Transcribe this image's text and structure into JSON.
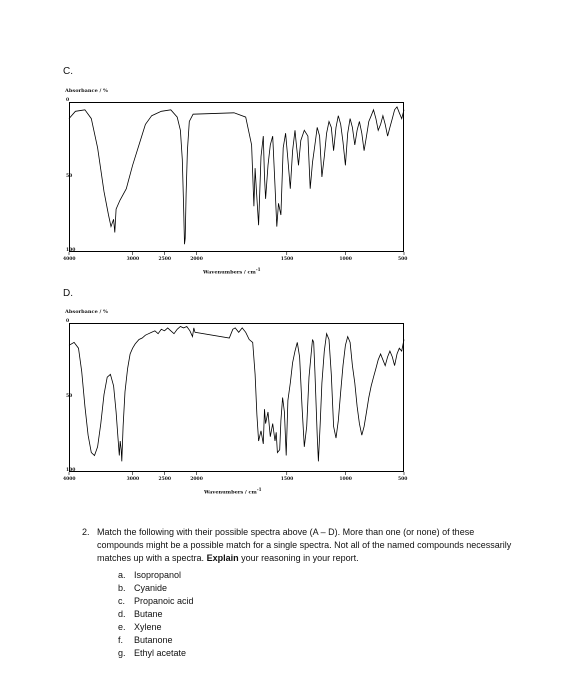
{
  "spectra": [
    {
      "label": "C.",
      "ylabel": "Absorbance / %",
      "ytick_top": "0",
      "ytick_mid": "50",
      "ytick_bottom": "100",
      "xlabel": "Wavenumbers / cm",
      "xlabel_sup": "-1",
      "xticks": [
        {
          "wn": 4000,
          "label": "4000"
        },
        {
          "wn": 3000,
          "label": "3000"
        },
        {
          "wn": 2500,
          "label": "2500"
        },
        {
          "wn": 2000,
          "label": "2000"
        },
        {
          "wn": 1500,
          "label": "1500"
        },
        {
          "wn": 1000,
          "label": "1000"
        },
        {
          "wn": 500,
          "label": "500"
        }
      ],
      "trace": [
        [
          4000,
          10
        ],
        [
          3900,
          5
        ],
        [
          3750,
          4
        ],
        [
          3650,
          10
        ],
        [
          3550,
          30
        ],
        [
          3450,
          60
        ],
        [
          3380,
          76
        ],
        [
          3340,
          84
        ],
        [
          3300,
          79
        ],
        [
          3280,
          88
        ],
        [
          3260,
          72
        ],
        [
          3200,
          66
        ],
        [
          3100,
          58
        ],
        [
          3000,
          42
        ],
        [
          2900,
          28
        ],
        [
          2800,
          14
        ],
        [
          2700,
          8
        ],
        [
          2550,
          5
        ],
        [
          2400,
          4
        ],
        [
          2300,
          9
        ],
        [
          2250,
          18
        ],
        [
          2220,
          38
        ],
        [
          2200,
          70
        ],
        [
          2185,
          96
        ],
        [
          2175,
          92
        ],
        [
          2160,
          62
        ],
        [
          2140,
          32
        ],
        [
          2110,
          12
        ],
        [
          2050,
          7
        ],
        [
          1950,
          6
        ],
        [
          1850,
          9
        ],
        [
          1800,
          28
        ],
        [
          1780,
          70
        ],
        [
          1770,
          44
        ],
        [
          1760,
          58
        ],
        [
          1740,
          83
        ],
        [
          1720,
          36
        ],
        [
          1700,
          22
        ],
        [
          1690,
          50
        ],
        [
          1680,
          65
        ],
        [
          1660,
          42
        ],
        [
          1640,
          28
        ],
        [
          1620,
          22
        ],
        [
          1600,
          56
        ],
        [
          1585,
          84
        ],
        [
          1570,
          68
        ],
        [
          1550,
          76
        ],
        [
          1530,
          30
        ],
        [
          1510,
          20
        ],
        [
          1490,
          38
        ],
        [
          1470,
          58
        ],
        [
          1450,
          32
        ],
        [
          1430,
          18
        ],
        [
          1420,
          26
        ],
        [
          1400,
          42
        ],
        [
          1380,
          25
        ],
        [
          1350,
          18
        ],
        [
          1320,
          22
        ],
        [
          1300,
          58
        ],
        [
          1280,
          40
        ],
        [
          1260,
          28
        ],
        [
          1240,
          16
        ],
        [
          1220,
          22
        ],
        [
          1200,
          50
        ],
        [
          1180,
          36
        ],
        [
          1160,
          20
        ],
        [
          1140,
          12
        ],
        [
          1120,
          16
        ],
        [
          1100,
          32
        ],
        [
          1080,
          16
        ],
        [
          1060,
          8
        ],
        [
          1040,
          14
        ],
        [
          1020,
          26
        ],
        [
          1000,
          42
        ],
        [
          980,
          20
        ],
        [
          960,
          10
        ],
        [
          940,
          16
        ],
        [
          920,
          28
        ],
        [
          900,
          18
        ],
        [
          880,
          12
        ],
        [
          860,
          20
        ],
        [
          840,
          32
        ],
        [
          820,
          22
        ],
        [
          800,
          12
        ],
        [
          780,
          8
        ],
        [
          760,
          4
        ],
        [
          740,
          10
        ],
        [
          720,
          18
        ],
        [
          700,
          14
        ],
        [
          680,
          8
        ],
        [
          660,
          14
        ],
        [
          640,
          22
        ],
        [
          620,
          16
        ],
        [
          600,
          10
        ],
        [
          580,
          4
        ],
        [
          560,
          2
        ],
        [
          540,
          6
        ],
        [
          520,
          10
        ],
        [
          500,
          4
        ]
      ]
    },
    {
      "label": "D.",
      "ylabel": "Absorbance / %",
      "ytick_top": "0",
      "ytick_mid": "50",
      "ytick_bottom": "100",
      "xlabel": "Wavenumbers / cm",
      "xlabel_sup": "-1",
      "xticks": [
        {
          "wn": 4000,
          "label": "4000"
        },
        {
          "wn": 3000,
          "label": "3000"
        },
        {
          "wn": 2500,
          "label": "2500"
        },
        {
          "wn": 2000,
          "label": "2000"
        },
        {
          "wn": 1500,
          "label": "1500"
        },
        {
          "wn": 1000,
          "label": "1000"
        },
        {
          "wn": 500,
          "label": "500"
        }
      ],
      "trace": [
        [
          4000,
          14
        ],
        [
          3920,
          12
        ],
        [
          3850,
          16
        ],
        [
          3800,
          32
        ],
        [
          3750,
          56
        ],
        [
          3700,
          76
        ],
        [
          3650,
          88
        ],
        [
          3600,
          90
        ],
        [
          3550,
          84
        ],
        [
          3500,
          68
        ],
        [
          3450,
          48
        ],
        [
          3400,
          36
        ],
        [
          3350,
          34
        ],
        [
          3300,
          42
        ],
        [
          3260,
          60
        ],
        [
          3230,
          78
        ],
        [
          3210,
          90
        ],
        [
          3195,
          80
        ],
        [
          3180,
          86
        ],
        [
          3170,
          94
        ],
        [
          3150,
          70
        ],
        [
          3120,
          46
        ],
        [
          3080,
          30
        ],
        [
          3040,
          20
        ],
        [
          3000,
          16
        ],
        [
          2960,
          13
        ],
        [
          2900,
          10
        ],
        [
          2850,
          9
        ],
        [
          2800,
          7
        ],
        [
          2750,
          6
        ],
        [
          2700,
          5
        ],
        [
          2650,
          4
        ],
        [
          2600,
          6
        ],
        [
          2550,
          3
        ],
        [
          2500,
          4
        ],
        [
          2450,
          2
        ],
        [
          2400,
          4
        ],
        [
          2350,
          6
        ],
        [
          2300,
          3
        ],
        [
          2250,
          1
        ],
        [
          2200,
          2
        ],
        [
          2150,
          1
        ],
        [
          2100,
          4
        ],
        [
          2060,
          8
        ],
        [
          2040,
          2
        ],
        [
          2020,
          5
        ],
        [
          1990,
          9
        ],
        [
          1960,
          3
        ],
        [
          1940,
          2
        ],
        [
          1910,
          5
        ],
        [
          1880,
          2
        ],
        [
          1850,
          5
        ],
        [
          1820,
          10
        ],
        [
          1790,
          12
        ],
        [
          1770,
          34
        ],
        [
          1755,
          62
        ],
        [
          1740,
          80
        ],
        [
          1720,
          73
        ],
        [
          1700,
          82
        ],
        [
          1690,
          58
        ],
        [
          1680,
          68
        ],
        [
          1660,
          60
        ],
        [
          1640,
          77
        ],
        [
          1620,
          68
        ],
        [
          1600,
          80
        ],
        [
          1590,
          74
        ],
        [
          1580,
          88
        ],
        [
          1560,
          86
        ],
        [
          1550,
          66
        ],
        [
          1535,
          50
        ],
        [
          1520,
          60
        ],
        [
          1505,
          90
        ],
        [
          1490,
          52
        ],
        [
          1470,
          40
        ],
        [
          1450,
          26
        ],
        [
          1430,
          18
        ],
        [
          1410,
          12
        ],
        [
          1390,
          22
        ],
        [
          1370,
          56
        ],
        [
          1350,
          84
        ],
        [
          1330,
          70
        ],
        [
          1310,
          36
        ],
        [
          1290,
          18
        ],
        [
          1280,
          10
        ],
        [
          1270,
          12
        ],
        [
          1260,
          32
        ],
        [
          1240,
          76
        ],
        [
          1230,
          94
        ],
        [
          1215,
          68
        ],
        [
          1200,
          40
        ],
        [
          1180,
          18
        ],
        [
          1160,
          6
        ],
        [
          1140,
          10
        ],
        [
          1120,
          34
        ],
        [
          1100,
          70
        ],
        [
          1080,
          78
        ],
        [
          1060,
          66
        ],
        [
          1040,
          46
        ],
        [
          1020,
          28
        ],
        [
          1000,
          14
        ],
        [
          980,
          8
        ],
        [
          960,
          12
        ],
        [
          940,
          28
        ],
        [
          920,
          40
        ],
        [
          900,
          56
        ],
        [
          880,
          68
        ],
        [
          860,
          76
        ],
        [
          840,
          70
        ],
        [
          820,
          60
        ],
        [
          800,
          50
        ],
        [
          780,
          42
        ],
        [
          760,
          36
        ],
        [
          740,
          30
        ],
        [
          720,
          24
        ],
        [
          700,
          20
        ],
        [
          680,
          24
        ],
        [
          660,
          28
        ],
        [
          640,
          22
        ],
        [
          620,
          18
        ],
        [
          600,
          22
        ],
        [
          580,
          28
        ],
        [
          560,
          20
        ],
        [
          540,
          16
        ],
        [
          520,
          18
        ],
        [
          500,
          10
        ]
      ]
    }
  ],
  "question": {
    "number": "2.",
    "text_before": "Match the following with their possible spectra above (A – D). More than one (or none) of these compounds might be a possible match for a single spectra. Not all of the named compounds necessarily matches up with a spectra. ",
    "text_bold": "Explain",
    "text_after": " your reasoning in your report.",
    "options": [
      {
        "marker": "a.",
        "text": "Isopropanol"
      },
      {
        "marker": "b.",
        "text": "Cyanide"
      },
      {
        "marker": "c.",
        "text": "Propanoic acid"
      },
      {
        "marker": "d.",
        "text": "Butane"
      },
      {
        "marker": "e.",
        "text": "Xylene"
      },
      {
        "marker": "f.",
        "text": "Butanone"
      },
      {
        "marker": "g.",
        "text": "Ethyl acetate"
      }
    ]
  }
}
